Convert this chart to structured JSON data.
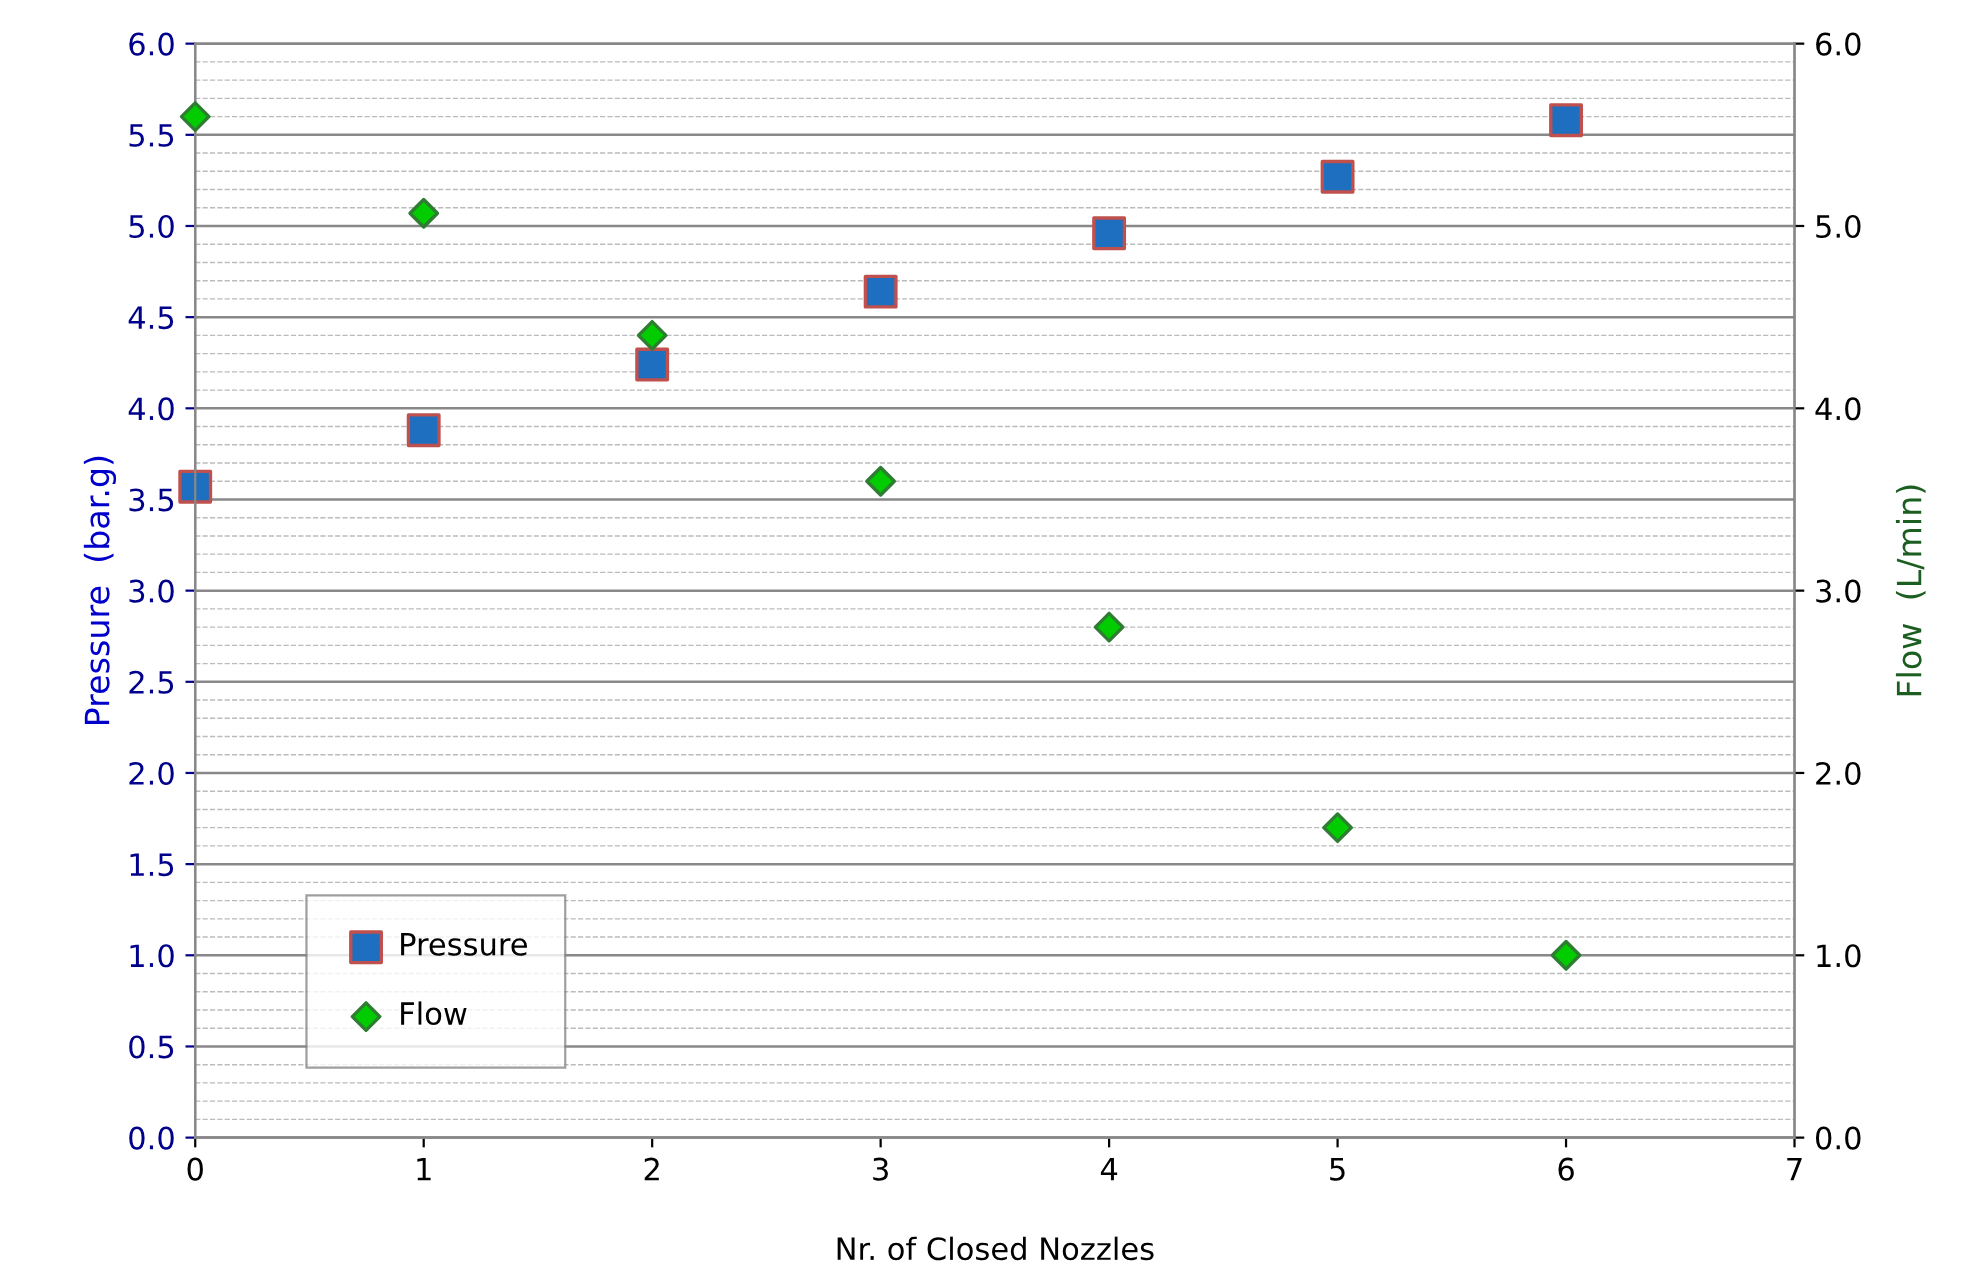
{
  "chart_data": {
    "type": "scatter",
    "xlabel": "Nr. of Closed Nozzles",
    "ylabel": "Pressure  (bar.g)",
    "y2label": "Flow  (L/min)",
    "x": [
      0,
      1,
      2,
      3,
      4,
      5,
      6
    ],
    "series": [
      {
        "name": "Pressure",
        "color": "#1f6fc0",
        "marker": "square",
        "values": [
          3.57,
          3.88,
          4.24,
          4.64,
          4.96,
          5.27,
          5.58
        ]
      },
      {
        "name": "Flow",
        "color": "#00cc00",
        "marker": "diamond",
        "axis": "y2",
        "values": [
          5.6,
          5.07,
          4.4,
          3.6,
          2.8,
          1.7,
          1.0
        ]
      }
    ],
    "xlim": [
      0,
      7
    ],
    "xticks": [
      0,
      1,
      2,
      3,
      4,
      5,
      6,
      7
    ],
    "ylim": [
      0,
      6
    ],
    "yticks": [
      {
        "value": 0,
        "label": "0.0"
      },
      0.5,
      {
        "value": 1,
        "label": "1.0"
      },
      1.5,
      {
        "value": 2,
        "label": "2.0"
      },
      2.5,
      {
        "value": 3,
        "label": "3.0"
      },
      3.5,
      {
        "value": 4,
        "label": "4.0"
      },
      4.5,
      {
        "value": 5,
        "label": "5.0"
      },
      5.5,
      {
        "value": 6,
        "label": "6.0"
      }
    ],
    "y2lim": [
      0,
      6
    ],
    "y2ticks": [
      {
        "value": 0,
        "label": "0.0"
      },
      {
        "value": 1,
        "label": "1.0"
      },
      {
        "value": 2,
        "label": "2.0"
      },
      {
        "value": 3,
        "label": "3.0"
      },
      {
        "value": 4,
        "label": "4.0"
      },
      {
        "value": 5,
        "label": "5.0"
      },
      {
        "value": 6,
        "label": "6.0"
      }
    ],
    "grid": "y",
    "legend": "bottom left"
  }
}
